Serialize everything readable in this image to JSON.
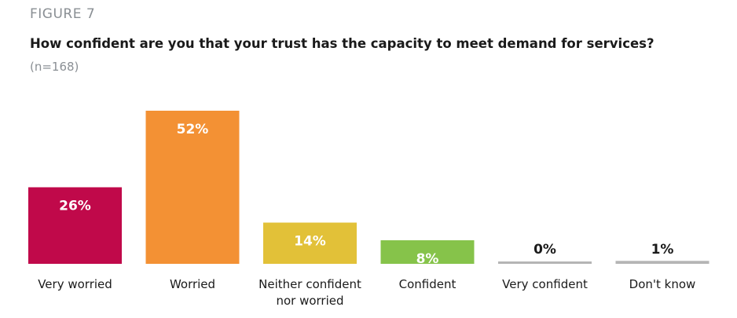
{
  "figure_label": "FIGURE 7",
  "chart_data": {
    "type": "bar",
    "title": "How confident are you that your trust has the capacity to meet demand for services?",
    "subtitle": "(n=168)",
    "categories": [
      [
        "Very worried"
      ],
      [
        "Worried"
      ],
      [
        "Neither confident",
        "nor worried"
      ],
      [
        "Confident"
      ],
      [
        "Very confident"
      ],
      [
        "Don't know"
      ]
    ],
    "values": [
      26,
      52,
      14,
      8,
      0,
      1
    ],
    "value_labels": [
      "26%",
      "52%",
      "14%",
      "8%",
      "0%",
      "1%"
    ],
    "colors": [
      "#c0094a",
      "#f39134",
      "#e2c138",
      "#86c34a",
      "#b5b5b5",
      "#b5b5b5"
    ],
    "value_label_inside": [
      true,
      true,
      true,
      true,
      false,
      false
    ],
    "ylim": [
      0,
      52
    ],
    "grid": false,
    "legend": "none"
  }
}
